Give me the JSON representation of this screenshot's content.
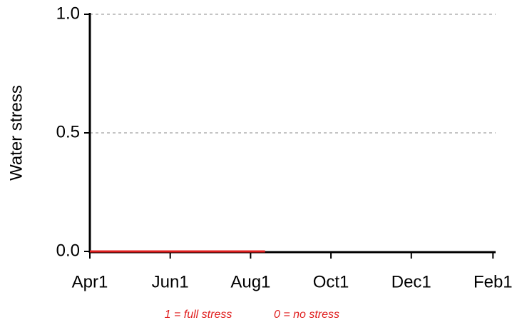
{
  "chart_data": {
    "type": "line",
    "ylabel": "Water stress",
    "x": [
      0,
      133
    ],
    "series": [
      {
        "name": "Water stress",
        "color": "#e02020",
        "values": [
          0,
          0
        ]
      }
    ],
    "xlim": [
      0,
      308
    ],
    "xticks": [
      {
        "value": 0,
        "label": "Apr1"
      },
      {
        "value": 61,
        "label": "Jun1"
      },
      {
        "value": 122,
        "label": "Aug1"
      },
      {
        "value": 183,
        "label": "Oct1"
      },
      {
        "value": 244,
        "label": "Dec1"
      },
      {
        "value": 306,
        "label": "Feb1"
      }
    ],
    "ylim": [
      0,
      1
    ],
    "yticks": [
      {
        "value": 0,
        "label": "0.0"
      },
      {
        "value": 0.5,
        "label": "0.5"
      },
      {
        "value": 1,
        "label": "1.0"
      }
    ],
    "grid": true,
    "annotations": [
      "1 = full stress",
      "0 = no stress"
    ]
  }
}
